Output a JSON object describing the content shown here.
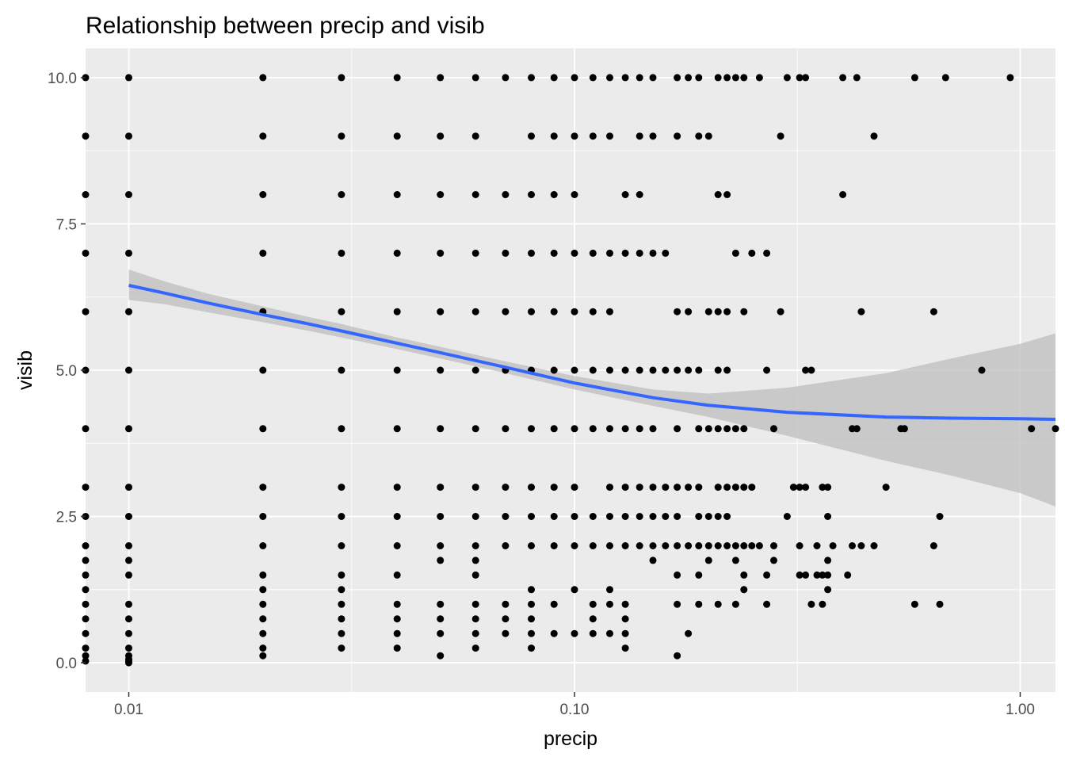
{
  "chart_data": {
    "type": "scatter",
    "title": "Relationship between precip and visib",
    "xlabel": "precip",
    "ylabel": "visib",
    "x_scale": "log10",
    "xlim": [
      0.008,
      1.2
    ],
    "ylim": [
      -0.5,
      10.5
    ],
    "x_ticks": [
      {
        "value": 0.01,
        "label": "0.01"
      },
      {
        "value": 0.1,
        "label": "0.10"
      },
      {
        "value": 1.0,
        "label": "1.00"
      }
    ],
    "y_ticks": [
      {
        "value": 0.0,
        "label": "0.0"
      },
      {
        "value": 2.5,
        "label": "2.5"
      },
      {
        "value": 5.0,
        "label": "5.0"
      },
      {
        "value": 7.5,
        "label": "7.5"
      },
      {
        "value": 10.0,
        "label": "10.0"
      }
    ],
    "grid": true,
    "legend": "none",
    "colors": {
      "panel": "#ebebeb",
      "gridline": "#ffffff",
      "point": "#000000",
      "smooth_line": "#3366ff",
      "confidence_band": "#bdbdbd"
    },
    "points": [
      [
        0.008,
        10
      ],
      [
        0.01,
        10
      ],
      [
        0.02,
        10
      ],
      [
        0.03,
        10
      ],
      [
        0.04,
        10
      ],
      [
        0.05,
        10
      ],
      [
        0.06,
        10
      ],
      [
        0.07,
        10
      ],
      [
        0.08,
        10
      ],
      [
        0.09,
        10
      ],
      [
        0.1,
        10
      ],
      [
        0.11,
        10
      ],
      [
        0.12,
        10
      ],
      [
        0.13,
        10
      ],
      [
        0.14,
        10
      ],
      [
        0.15,
        10
      ],
      [
        0.17,
        10
      ],
      [
        0.18,
        10
      ],
      [
        0.19,
        10
      ],
      [
        0.21,
        10
      ],
      [
        0.22,
        10
      ],
      [
        0.23,
        10
      ],
      [
        0.24,
        10
      ],
      [
        0.26,
        10
      ],
      [
        0.3,
        10
      ],
      [
        0.32,
        10
      ],
      [
        0.33,
        10
      ],
      [
        0.4,
        10
      ],
      [
        0.43,
        10
      ],
      [
        0.58,
        10
      ],
      [
        0.68,
        10
      ],
      [
        0.95,
        10
      ],
      [
        0.008,
        9
      ],
      [
        0.01,
        9
      ],
      [
        0.02,
        9
      ],
      [
        0.03,
        9
      ],
      [
        0.04,
        9
      ],
      [
        0.05,
        9
      ],
      [
        0.06,
        9
      ],
      [
        0.08,
        9
      ],
      [
        0.09,
        9
      ],
      [
        0.1,
        9
      ],
      [
        0.11,
        9
      ],
      [
        0.12,
        9
      ],
      [
        0.14,
        9
      ],
      [
        0.15,
        9
      ],
      [
        0.17,
        9
      ],
      [
        0.19,
        9
      ],
      [
        0.2,
        9
      ],
      [
        0.29,
        9
      ],
      [
        0.47,
        9
      ],
      [
        0.008,
        8
      ],
      [
        0.01,
        8
      ],
      [
        0.02,
        8
      ],
      [
        0.03,
        8
      ],
      [
        0.04,
        8
      ],
      [
        0.05,
        8
      ],
      [
        0.06,
        8
      ],
      [
        0.07,
        8
      ],
      [
        0.08,
        8
      ],
      [
        0.09,
        8
      ],
      [
        0.1,
        8
      ],
      [
        0.13,
        8
      ],
      [
        0.14,
        8
      ],
      [
        0.21,
        8
      ],
      [
        0.22,
        8
      ],
      [
        0.4,
        8
      ],
      [
        0.008,
        7
      ],
      [
        0.01,
        7
      ],
      [
        0.02,
        7
      ],
      [
        0.03,
        7
      ],
      [
        0.04,
        7
      ],
      [
        0.05,
        7
      ],
      [
        0.06,
        7
      ],
      [
        0.07,
        7
      ],
      [
        0.08,
        7
      ],
      [
        0.09,
        7
      ],
      [
        0.1,
        7
      ],
      [
        0.11,
        7
      ],
      [
        0.12,
        7
      ],
      [
        0.13,
        7
      ],
      [
        0.14,
        7
      ],
      [
        0.15,
        7
      ],
      [
        0.16,
        7
      ],
      [
        0.23,
        7
      ],
      [
        0.25,
        7
      ],
      [
        0.27,
        7
      ],
      [
        0.008,
        6
      ],
      [
        0.01,
        6
      ],
      [
        0.02,
        6
      ],
      [
        0.03,
        6
      ],
      [
        0.04,
        6
      ],
      [
        0.05,
        6
      ],
      [
        0.06,
        6
      ],
      [
        0.07,
        6
      ],
      [
        0.08,
        6
      ],
      [
        0.09,
        6
      ],
      [
        0.1,
        6
      ],
      [
        0.11,
        6
      ],
      [
        0.12,
        6
      ],
      [
        0.17,
        6
      ],
      [
        0.18,
        6
      ],
      [
        0.2,
        6
      ],
      [
        0.21,
        6
      ],
      [
        0.22,
        6
      ],
      [
        0.24,
        6
      ],
      [
        0.29,
        6
      ],
      [
        0.44,
        6
      ],
      [
        0.64,
        6
      ],
      [
        0.008,
        5
      ],
      [
        0.01,
        5
      ],
      [
        0.02,
        5
      ],
      [
        0.03,
        5
      ],
      [
        0.04,
        5
      ],
      [
        0.05,
        5
      ],
      [
        0.06,
        5
      ],
      [
        0.07,
        5
      ],
      [
        0.08,
        5
      ],
      [
        0.09,
        5
      ],
      [
        0.1,
        5
      ],
      [
        0.11,
        5
      ],
      [
        0.12,
        5
      ],
      [
        0.13,
        5
      ],
      [
        0.14,
        5
      ],
      [
        0.15,
        5
      ],
      [
        0.16,
        5
      ],
      [
        0.17,
        5
      ],
      [
        0.18,
        5
      ],
      [
        0.19,
        5
      ],
      [
        0.21,
        5
      ],
      [
        0.22,
        5
      ],
      [
        0.27,
        5
      ],
      [
        0.33,
        5
      ],
      [
        0.34,
        5
      ],
      [
        0.82,
        5
      ],
      [
        0.008,
        4
      ],
      [
        0.01,
        4
      ],
      [
        0.02,
        4
      ],
      [
        0.03,
        4
      ],
      [
        0.04,
        4
      ],
      [
        0.05,
        4
      ],
      [
        0.06,
        4
      ],
      [
        0.07,
        4
      ],
      [
        0.08,
        4
      ],
      [
        0.09,
        4
      ],
      [
        0.1,
        4
      ],
      [
        0.11,
        4
      ],
      [
        0.12,
        4
      ],
      [
        0.13,
        4
      ],
      [
        0.14,
        4
      ],
      [
        0.15,
        4
      ],
      [
        0.17,
        4
      ],
      [
        0.19,
        4
      ],
      [
        0.2,
        4
      ],
      [
        0.21,
        4
      ],
      [
        0.22,
        4
      ],
      [
        0.23,
        4
      ],
      [
        0.24,
        4
      ],
      [
        0.28,
        4
      ],
      [
        0.42,
        4
      ],
      [
        0.43,
        4
      ],
      [
        0.54,
        4
      ],
      [
        0.55,
        4
      ],
      [
        1.06,
        4
      ],
      [
        1.2,
        4
      ],
      [
        0.008,
        3
      ],
      [
        0.01,
        3
      ],
      [
        0.02,
        3
      ],
      [
        0.03,
        3
      ],
      [
        0.04,
        3
      ],
      [
        0.05,
        3
      ],
      [
        0.06,
        3
      ],
      [
        0.07,
        3
      ],
      [
        0.08,
        3
      ],
      [
        0.09,
        3
      ],
      [
        0.1,
        3
      ],
      [
        0.12,
        3
      ],
      [
        0.13,
        3
      ],
      [
        0.14,
        3
      ],
      [
        0.15,
        3
      ],
      [
        0.16,
        3
      ],
      [
        0.17,
        3
      ],
      [
        0.18,
        3
      ],
      [
        0.19,
        3
      ],
      [
        0.21,
        3
      ],
      [
        0.22,
        3
      ],
      [
        0.23,
        3
      ],
      [
        0.24,
        3
      ],
      [
        0.25,
        3
      ],
      [
        0.31,
        3
      ],
      [
        0.32,
        3
      ],
      [
        0.33,
        3
      ],
      [
        0.36,
        3
      ],
      [
        0.37,
        3
      ],
      [
        0.5,
        3
      ],
      [
        0.008,
        2.5
      ],
      [
        0.01,
        2.5
      ],
      [
        0.02,
        2.5
      ],
      [
        0.03,
        2.5
      ],
      [
        0.04,
        2.5
      ],
      [
        0.05,
        2.5
      ],
      [
        0.06,
        2.5
      ],
      [
        0.07,
        2.5
      ],
      [
        0.08,
        2.5
      ],
      [
        0.09,
        2.5
      ],
      [
        0.1,
        2.5
      ],
      [
        0.11,
        2.5
      ],
      [
        0.12,
        2.5
      ],
      [
        0.13,
        2.5
      ],
      [
        0.14,
        2.5
      ],
      [
        0.15,
        2.5
      ],
      [
        0.16,
        2.5
      ],
      [
        0.17,
        2.5
      ],
      [
        0.19,
        2.5
      ],
      [
        0.2,
        2.5
      ],
      [
        0.21,
        2.5
      ],
      [
        0.22,
        2.5
      ],
      [
        0.3,
        2.5
      ],
      [
        0.37,
        2.5
      ],
      [
        0.66,
        2.5
      ],
      [
        0.008,
        2
      ],
      [
        0.01,
        2
      ],
      [
        0.02,
        2
      ],
      [
        0.03,
        2
      ],
      [
        0.04,
        2
      ],
      [
        0.05,
        2
      ],
      [
        0.06,
        2
      ],
      [
        0.07,
        2
      ],
      [
        0.08,
        2
      ],
      [
        0.09,
        2
      ],
      [
        0.1,
        2
      ],
      [
        0.11,
        2
      ],
      [
        0.12,
        2
      ],
      [
        0.13,
        2
      ],
      [
        0.14,
        2
      ],
      [
        0.15,
        2
      ],
      [
        0.16,
        2
      ],
      [
        0.17,
        2
      ],
      [
        0.18,
        2
      ],
      [
        0.19,
        2
      ],
      [
        0.2,
        2
      ],
      [
        0.21,
        2
      ],
      [
        0.22,
        2
      ],
      [
        0.23,
        2
      ],
      [
        0.24,
        2
      ],
      [
        0.25,
        2
      ],
      [
        0.26,
        2
      ],
      [
        0.28,
        2
      ],
      [
        0.32,
        2
      ],
      [
        0.35,
        2
      ],
      [
        0.38,
        2
      ],
      [
        0.42,
        2
      ],
      [
        0.44,
        2
      ],
      [
        0.47,
        2
      ],
      [
        0.64,
        2
      ],
      [
        0.008,
        1.75
      ],
      [
        0.01,
        1.75
      ],
      [
        0.05,
        1.75
      ],
      [
        0.06,
        1.75
      ],
      [
        0.15,
        1.75
      ],
      [
        0.2,
        1.75
      ],
      [
        0.23,
        1.75
      ],
      [
        0.28,
        1.75
      ],
      [
        0.37,
        1.75
      ],
      [
        0.008,
        1.5
      ],
      [
        0.01,
        1.5
      ],
      [
        0.02,
        1.5
      ],
      [
        0.03,
        1.5
      ],
      [
        0.04,
        1.5
      ],
      [
        0.06,
        1.5
      ],
      [
        0.17,
        1.5
      ],
      [
        0.19,
        1.5
      ],
      [
        0.24,
        1.5
      ],
      [
        0.27,
        1.5
      ],
      [
        0.32,
        1.5
      ],
      [
        0.33,
        1.5
      ],
      [
        0.35,
        1.5
      ],
      [
        0.36,
        1.5
      ],
      [
        0.37,
        1.5
      ],
      [
        0.41,
        1.5
      ],
      [
        0.008,
        1.25
      ],
      [
        0.02,
        1.25
      ],
      [
        0.03,
        1.25
      ],
      [
        0.08,
        1.25
      ],
      [
        0.1,
        1.25
      ],
      [
        0.12,
        1.25
      ],
      [
        0.24,
        1.25
      ],
      [
        0.37,
        1.25
      ],
      [
        0.008,
        1
      ],
      [
        0.01,
        1
      ],
      [
        0.02,
        1
      ],
      [
        0.03,
        1
      ],
      [
        0.04,
        1
      ],
      [
        0.05,
        1
      ],
      [
        0.06,
        1
      ],
      [
        0.07,
        1
      ],
      [
        0.08,
        1
      ],
      [
        0.09,
        1
      ],
      [
        0.11,
        1
      ],
      [
        0.12,
        1
      ],
      [
        0.13,
        1
      ],
      [
        0.17,
        1
      ],
      [
        0.19,
        1
      ],
      [
        0.21,
        1
      ],
      [
        0.23,
        1
      ],
      [
        0.27,
        1
      ],
      [
        0.34,
        1
      ],
      [
        0.36,
        1
      ],
      [
        0.58,
        1
      ],
      [
        0.66,
        1
      ],
      [
        0.008,
        0.75
      ],
      [
        0.01,
        0.75
      ],
      [
        0.02,
        0.75
      ],
      [
        0.03,
        0.75
      ],
      [
        0.04,
        0.75
      ],
      [
        0.05,
        0.75
      ],
      [
        0.06,
        0.75
      ],
      [
        0.07,
        0.75
      ],
      [
        0.08,
        0.75
      ],
      [
        0.11,
        0.75
      ],
      [
        0.13,
        0.75
      ],
      [
        0.008,
        0.5
      ],
      [
        0.01,
        0.5
      ],
      [
        0.02,
        0.5
      ],
      [
        0.03,
        0.5
      ],
      [
        0.04,
        0.5
      ],
      [
        0.05,
        0.5
      ],
      [
        0.06,
        0.5
      ],
      [
        0.07,
        0.5
      ],
      [
        0.08,
        0.5
      ],
      [
        0.09,
        0.5
      ],
      [
        0.1,
        0.5
      ],
      [
        0.11,
        0.5
      ],
      [
        0.12,
        0.5
      ],
      [
        0.13,
        0.5
      ],
      [
        0.18,
        0.5
      ],
      [
        0.008,
        0.25
      ],
      [
        0.01,
        0.25
      ],
      [
        0.02,
        0.25
      ],
      [
        0.03,
        0.25
      ],
      [
        0.04,
        0.25
      ],
      [
        0.06,
        0.25
      ],
      [
        0.08,
        0.25
      ],
      [
        0.13,
        0.25
      ],
      [
        0.008,
        0.12
      ],
      [
        0.01,
        0.12
      ],
      [
        0.02,
        0.12
      ],
      [
        0.05,
        0.12
      ],
      [
        0.17,
        0.12
      ],
      [
        0.008,
        0.03
      ],
      [
        0.01,
        0.03
      ],
      [
        0.01,
        0.06
      ],
      [
        0.01,
        0.0
      ]
    ],
    "smooth": [
      {
        "x": 0.01,
        "y": 6.45,
        "lo": 6.2,
        "hi": 6.72
      },
      {
        "x": 0.012,
        "y": 6.32,
        "lo": 6.13,
        "hi": 6.52
      },
      {
        "x": 0.015,
        "y": 6.15,
        "lo": 5.99,
        "hi": 6.31
      },
      {
        "x": 0.02,
        "y": 5.95,
        "lo": 5.82,
        "hi": 6.09
      },
      {
        "x": 0.025,
        "y": 5.8,
        "lo": 5.68,
        "hi": 5.92
      },
      {
        "x": 0.03,
        "y": 5.67,
        "lo": 5.56,
        "hi": 5.79
      },
      {
        "x": 0.04,
        "y": 5.46,
        "lo": 5.36,
        "hi": 5.56
      },
      {
        "x": 0.05,
        "y": 5.3,
        "lo": 5.2,
        "hi": 5.4
      },
      {
        "x": 0.07,
        "y": 5.05,
        "lo": 4.95,
        "hi": 5.15
      },
      {
        "x": 0.1,
        "y": 4.78,
        "lo": 4.67,
        "hi": 4.9
      },
      {
        "x": 0.15,
        "y": 4.53,
        "lo": 4.39,
        "hi": 4.67
      },
      {
        "x": 0.2,
        "y": 4.4,
        "lo": 4.2,
        "hi": 4.6
      },
      {
        "x": 0.3,
        "y": 4.28,
        "lo": 3.88,
        "hi": 4.7
      },
      {
        "x": 0.5,
        "y": 4.2,
        "lo": 3.45,
        "hi": 4.95
      },
      {
        "x": 0.7,
        "y": 4.18,
        "lo": 3.2,
        "hi": 5.2
      },
      {
        "x": 1.0,
        "y": 4.17,
        "lo": 2.9,
        "hi": 5.45
      },
      {
        "x": 1.2,
        "y": 4.16,
        "lo": 2.67,
        "hi": 5.63
      }
    ]
  }
}
